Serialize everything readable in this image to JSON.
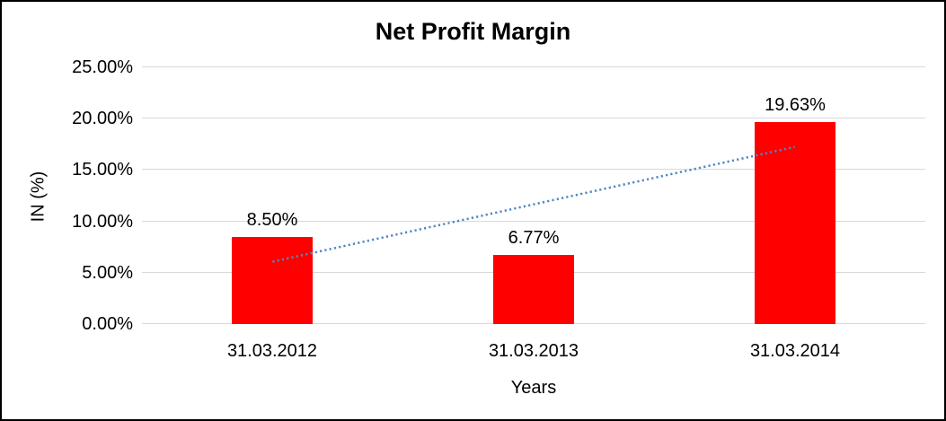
{
  "window": {
    "background_color": "#FFFFFF",
    "border_color": "#000000",
    "text_color": "#000000"
  },
  "chart_data": {
    "type": "bar",
    "title": "Net Profit Margin",
    "xlabel": "Years",
    "ylabel": "IN (%)",
    "categories": [
      "31.03.2012",
      "31.03.2013",
      "31.03.2014"
    ],
    "values": [
      8.5,
      6.77,
      19.63
    ],
    "value_labels": [
      "8.50%",
      "6.77%",
      "19.63%"
    ],
    "ylim": [
      0,
      25
    ],
    "ytick_step": 5,
    "ytick_labels": [
      "0.00%",
      "5.00%",
      "10.00%",
      "15.00%",
      "20.00%",
      "25.00%"
    ],
    "grid": true,
    "legend": "none",
    "bar_color": "#FF0000",
    "gridline_color": "#D9D9D9",
    "trendline": {
      "type": "linear",
      "style": "dotted",
      "color": "#4E87C5",
      "start_value": 6.07,
      "end_value": 17.25
    }
  }
}
